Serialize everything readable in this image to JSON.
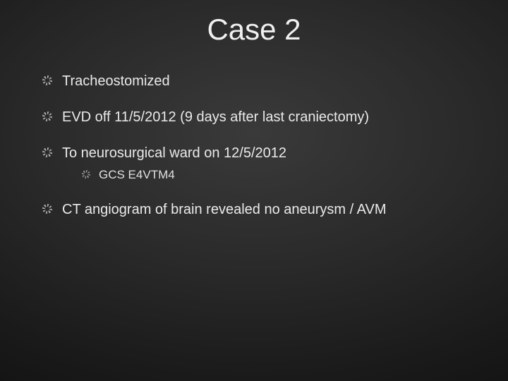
{
  "slide": {
    "title": "Case 2",
    "background": {
      "type": "radial-gradient",
      "center_color": "#3a3a3a",
      "edge_color": "#0a0a0a"
    },
    "title_style": {
      "font_size_pt": 32,
      "color": "#f0f0f0",
      "weight": "normal",
      "align": "center"
    },
    "body_style": {
      "font_size_pt": 15,
      "sub_font_size_pt": 13,
      "color": "#eaeaea",
      "bullet_icon": "gear-icon",
      "bullet_color": "#aaaaaa"
    },
    "bullets": [
      {
        "text": "Tracheostomized"
      },
      {
        "text": "EVD off 11/5/2012 (9 days after last craniectomy)"
      },
      {
        "text": "To neurosurgical ward on 12/5/2012",
        "sub": [
          {
            "text": "GCS E4VTM4"
          }
        ]
      },
      {
        "text": "CT angiogram of brain revealed no aneurysm / AVM"
      }
    ]
  }
}
